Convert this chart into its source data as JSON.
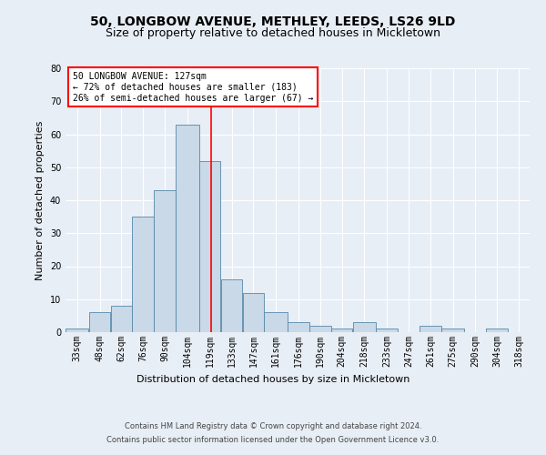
{
  "title1": "50, LONGBOW AVENUE, METHLEY, LEEDS, LS26 9LD",
  "title2": "Size of property relative to detached houses in Mickletown",
  "xlabel": "Distribution of detached houses by size in Mickletown",
  "ylabel": "Number of detached properties",
  "footnote1": "Contains HM Land Registry data © Crown copyright and database right 2024.",
  "footnote2": "Contains public sector information licensed under the Open Government Licence v3.0.",
  "annotation_line1": "50 LONGBOW AVENUE: 127sqm",
  "annotation_line2": "← 72% of detached houses are smaller (183)",
  "annotation_line3": "26% of semi-detached houses are larger (67) →",
  "bar_color": "#c9d9e8",
  "bar_edge_color": "#5588aa",
  "vertical_line_color": "red",
  "vertical_line_x": 127,
  "categories": [
    "33sqm",
    "48sqm",
    "62sqm",
    "76sqm",
    "90sqm",
    "104sqm",
    "119sqm",
    "133sqm",
    "147sqm",
    "161sqm",
    "176sqm",
    "190sqm",
    "204sqm",
    "218sqm",
    "233sqm",
    "247sqm",
    "261sqm",
    "275sqm",
    "290sqm",
    "304sqm",
    "318sqm"
  ],
  "bin_edges": [
    33,
    48,
    62,
    76,
    90,
    104,
    119,
    133,
    147,
    161,
    176,
    190,
    204,
    218,
    233,
    247,
    261,
    275,
    290,
    304,
    318,
    332
  ],
  "values": [
    1,
    6,
    8,
    35,
    43,
    63,
    52,
    16,
    12,
    6,
    3,
    2,
    1,
    3,
    1,
    0,
    2,
    1,
    0,
    1,
    0
  ],
  "ylim": [
    0,
    80
  ],
  "yticks": [
    0,
    10,
    20,
    30,
    40,
    50,
    60,
    70,
    80
  ],
  "background_color": "#e8eef5",
  "plot_bg_color": "#e8eef5",
  "grid_color": "#ffffff",
  "title1_fontsize": 10,
  "title2_fontsize": 9,
  "xlabel_fontsize": 8,
  "ylabel_fontsize": 8,
  "tick_fontsize": 7,
  "footnote_fontsize": 6,
  "annotation_box_facecolor": "#ffffff",
  "annotation_box_edgecolor": "red",
  "annotation_fontsize": 7
}
